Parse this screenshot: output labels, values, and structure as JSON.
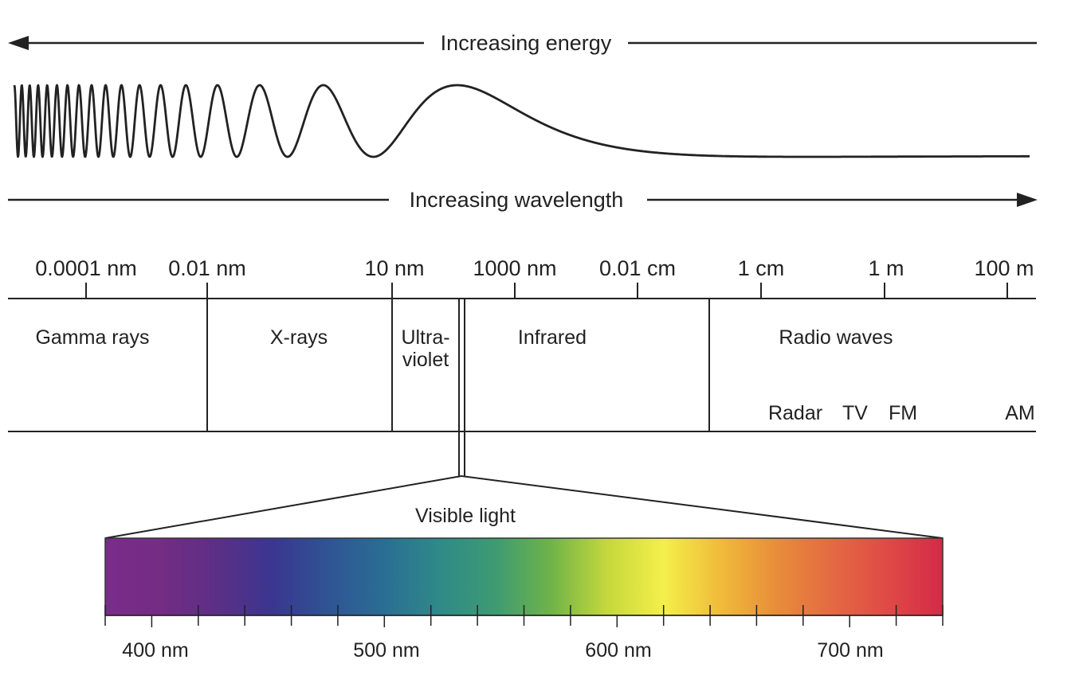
{
  "arrows": {
    "energy_label": "Increasing energy",
    "wavelength_label": "Increasing wavelength"
  },
  "scale": {
    "ticks": [
      "0.0001 nm",
      "0.01 nm",
      "10 nm",
      "1000 nm",
      "0.01 cm",
      "1 cm",
      "1 m",
      "100 m"
    ]
  },
  "bands": {
    "gamma": "Gamma rays",
    "xray": "X-rays",
    "uv_line1": "Ultra-",
    "uv_line2": "violet",
    "infrared": "Infrared",
    "radio": "Radio waves",
    "radio_subs": [
      "Radar",
      "TV",
      "FM",
      "AM"
    ]
  },
  "visible": {
    "label": "Visible light",
    "range_nm": [
      380,
      740
    ],
    "ticks": [
      "400 nm",
      "500 nm",
      "600 nm",
      "700 nm"
    ],
    "colors": [
      "#7a2c8a",
      "#742c84",
      "#5c2f86",
      "#3a3690",
      "#2f5494",
      "#2a6e94",
      "#2f8a88",
      "#3e9b72",
      "#70b448",
      "#c6d83c",
      "#f4ef4a",
      "#f0bc3a",
      "#e88e3a",
      "#e46a42",
      "#df4a46",
      "#d42a48"
    ]
  }
}
